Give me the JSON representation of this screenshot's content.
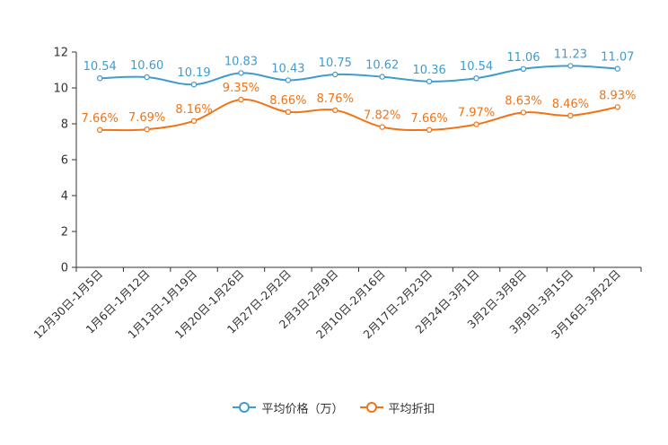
{
  "chart_data": {
    "type": "line",
    "categories": [
      "12月30日-1月5日",
      "1月6日-1月12日",
      "1月13日-1月19日",
      "1月20日-1月26日",
      "1月27日-2月2日",
      "2月3日-2月9日",
      "2月10日-2月16日",
      "2月17日-2月23日",
      "2月24日-3月1日",
      "3月2日-3月8日",
      "3月9日-3月15日",
      "3月16日-3月22日"
    ],
    "series": [
      {
        "name": "平均价格（万）",
        "color": "#3f9ccc",
        "values": [
          10.54,
          10.6,
          10.19,
          10.83,
          10.43,
          10.75,
          10.62,
          10.36,
          10.54,
          11.06,
          11.23,
          11.07
        ],
        "labels": [
          "10.54",
          "10.60",
          "10.19",
          "10.83",
          "10.43",
          "10.75",
          "10.62",
          "10.36",
          "10.54",
          "11.06",
          "11.23",
          "11.07"
        ]
      },
      {
        "name": "平均折扣",
        "color": "#f07416",
        "values": [
          7.66,
          7.69,
          8.16,
          9.35,
          8.66,
          8.76,
          7.82,
          7.66,
          7.97,
          8.63,
          8.46,
          8.93
        ],
        "labels": [
          "7.66%",
          "7.69%",
          "8.16%",
          "9.35%",
          "8.66%",
          "8.76%",
          "7.82%",
          "7.66%",
          "7.97%",
          "8.63%",
          "8.46%",
          "8.93%"
        ]
      }
    ],
    "ylim": [
      0,
      12
    ],
    "yticks": [
      0,
      2,
      4,
      6,
      8,
      10,
      12
    ],
    "legend_position": "bottom-center"
  }
}
